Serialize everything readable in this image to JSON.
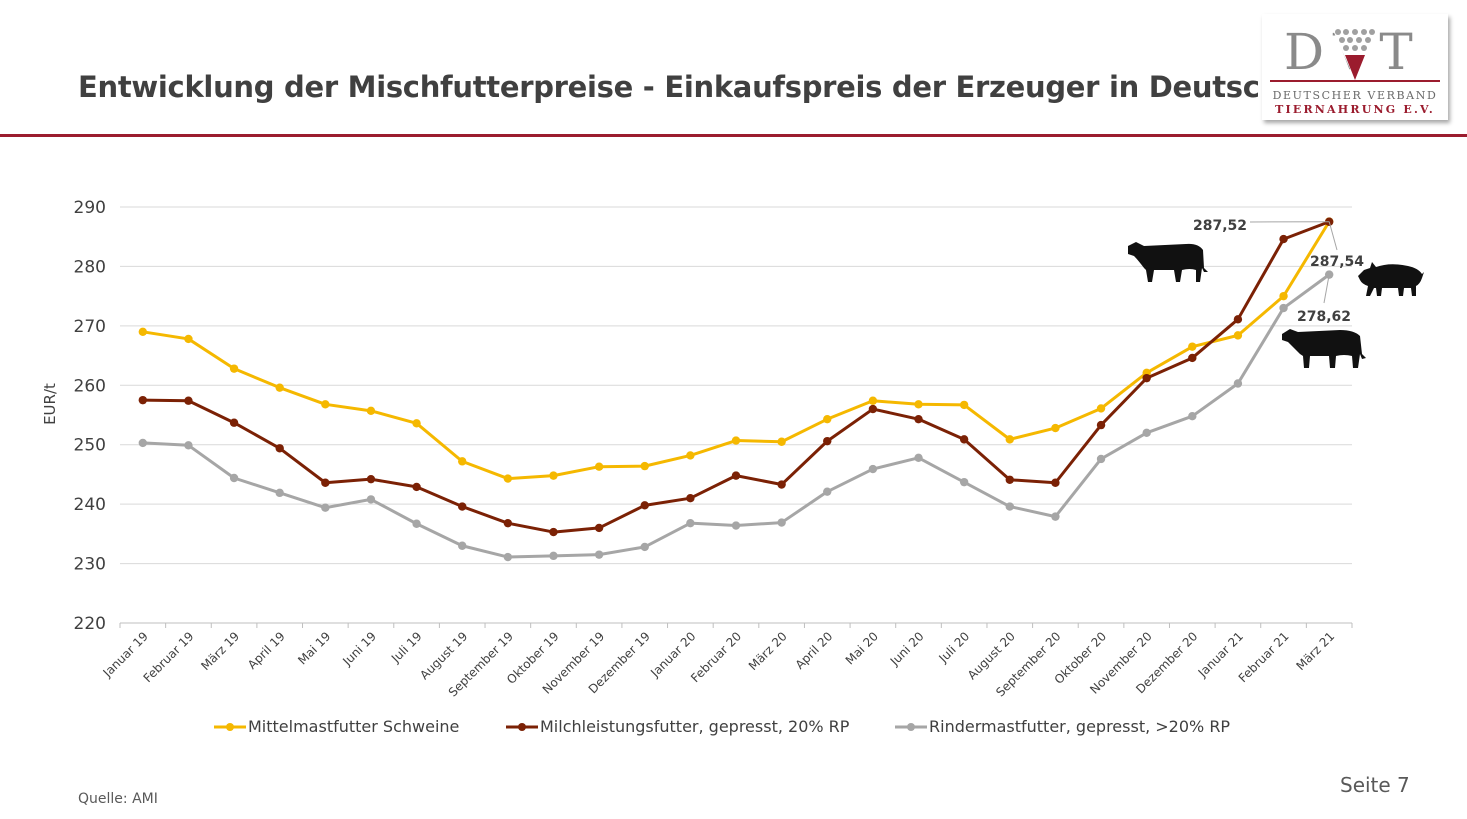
{
  "header": {
    "title": "Entwicklung der Mischfutterpreise - Einkaufspreis der Erzeuger in Deutschland"
  },
  "logo": {
    "letters": "DVT",
    "line1": "DEUTSCHER VERBAND",
    "line2": "TIERNAHRUNG E.V.",
    "brand_color": "#9b1c2e"
  },
  "footer": {
    "source": "Quelle: AMI",
    "page": "Seite 7"
  },
  "chart_data": {
    "type": "line",
    "title": "",
    "xlabel": "",
    "ylabel": "EUR/t",
    "ylim": [
      220,
      290
    ],
    "yticks": [
      220,
      230,
      240,
      250,
      260,
      270,
      280,
      290
    ],
    "grid": true,
    "legend_position": "bottom",
    "categories": [
      "Januar 19",
      "Februar 19",
      "März 19",
      "April 19",
      "Mai 19",
      "Juni 19",
      "Juli 19",
      "August 19",
      "September 19",
      "Oktober 19",
      "November 19",
      "Dezember 19",
      "Januar 20",
      "Februar 20",
      "März 20",
      "April 20",
      "Mai 20",
      "Juni 20",
      "Juli 20",
      "August 20",
      "September 20",
      "Oktober 20",
      "November 20",
      "Dezember 20",
      "Januar 21",
      "Februar 21",
      "März 21"
    ],
    "series": [
      {
        "name": "Mittelmastfutter Schweine",
        "color": "#f5b800",
        "values": [
          269.0,
          267.8,
          262.8,
          259.6,
          256.8,
          255.7,
          253.6,
          247.2,
          244.3,
          244.8,
          246.3,
          246.4,
          248.2,
          250.7,
          250.5,
          254.3,
          257.4,
          256.8,
          256.7,
          250.9,
          252.8,
          256.1,
          262.1,
          266.5,
          268.4,
          275.0,
          287.54
        ],
        "end_label": "287,54",
        "icon": "pig-icon"
      },
      {
        "name": "Milchleistungsfutter, gepresst, 20% RP",
        "color": "#7b2105",
        "values": [
          257.5,
          257.4,
          253.7,
          249.4,
          243.6,
          244.2,
          242.9,
          239.6,
          236.8,
          235.3,
          236.0,
          239.8,
          241.0,
          244.8,
          243.3,
          250.6,
          256.0,
          254.3,
          250.9,
          244.1,
          243.6,
          253.3,
          261.2,
          264.6,
          271.1,
          284.6,
          287.52
        ],
        "end_label": "287,52",
        "icon": "dairy-cow-icon"
      },
      {
        "name": "Rindermastfutter, gepresst, >20% RP",
        "color": "#a6a6a6",
        "values": [
          250.3,
          249.9,
          244.4,
          241.9,
          239.4,
          240.8,
          236.7,
          233.0,
          231.1,
          231.3,
          231.5,
          232.8,
          236.8,
          236.4,
          236.9,
          242.1,
          245.9,
          247.8,
          243.7,
          239.6,
          237.9,
          247.6,
          252.0,
          254.8,
          260.3,
          273.0,
          278.62
        ],
        "end_label": "278,62",
        "icon": "beef-cattle-icon"
      }
    ]
  }
}
